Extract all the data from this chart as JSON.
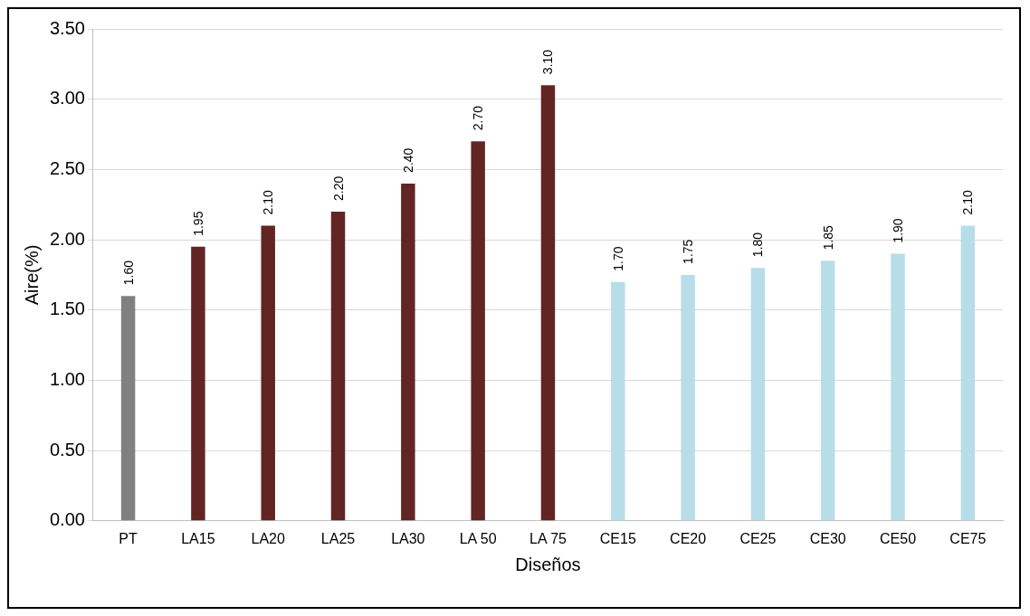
{
  "chart_data": {
    "type": "bar",
    "xlabel": "Diseños",
    "ylabel": "Aire(%)",
    "categories": [
      "PT",
      "LA15",
      "LA20",
      "LA25",
      "LA30",
      "LA 50",
      "LA 75",
      "CE15",
      "CE20",
      "CE25",
      "CE30",
      "CE50",
      "CE75"
    ],
    "values": [
      1.6,
      1.95,
      2.1,
      2.2,
      2.4,
      2.7,
      3.1,
      1.7,
      1.75,
      1.8,
      1.85,
      1.9,
      2.1
    ],
    "colors": [
      "#808080",
      "#632523",
      "#632523",
      "#632523",
      "#632523",
      "#632523",
      "#632523",
      "#b7dde8",
      "#b7dde8",
      "#b7dde8",
      "#b7dde8",
      "#b7dde8",
      "#b7dde8"
    ],
    "value_labels": [
      "1.60",
      "1.95",
      "2.10",
      "2.20",
      "2.40",
      "2.70",
      "3.10",
      "1.70",
      "1.75",
      "1.80",
      "1.85",
      "1.90",
      "2.10"
    ],
    "ylim": [
      0,
      3.5
    ],
    "yticks": [
      {
        "value": 0,
        "label": "0.00"
      },
      {
        "value": 0.5,
        "label": "0.50"
      },
      {
        "value": 1,
        "label": "1.00"
      },
      {
        "value": 1.5,
        "label": "1.50"
      },
      {
        "value": 2,
        "label": "2.00"
      },
      {
        "value": 2.5,
        "label": "2.50"
      },
      {
        "value": 3,
        "label": "3.00"
      },
      {
        "value": 3.5,
        "label": "3.50"
      }
    ],
    "grid": "y",
    "legend": false
  }
}
